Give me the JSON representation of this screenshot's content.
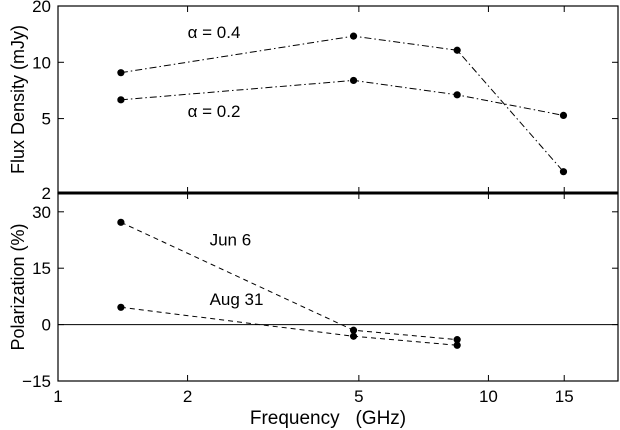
{
  "chart_data": [
    {
      "type": "line",
      "scale": {
        "x": "log",
        "y": "log"
      },
      "xlim": [
        1,
        20
      ],
      "ylim": [
        2,
        20
      ],
      "ylabel": "Flux Density (mJy)",
      "yticks": [
        2,
        5,
        10,
        20
      ],
      "ytick_labels": [
        "2",
        "5",
        "10",
        "20"
      ],
      "series": [
        {
          "name": "α = 0.4",
          "line_style": "dash-dot",
          "x": [
            1.4,
            4.86,
            8.46,
            14.94
          ],
          "y": [
            8.8,
            13.8,
            11.6,
            2.6
          ]
        },
        {
          "name": "α = 0.2",
          "line_style": "dash-dot",
          "x": [
            1.4,
            4.86,
            8.46,
            14.94
          ],
          "y": [
            6.3,
            8.0,
            6.7,
            5.2
          ]
        }
      ],
      "annotations": [
        {
          "text": "α = 0.4",
          "x": 2.0,
          "y": 13.5
        },
        {
          "text": "α = 0.2",
          "x": 2.0,
          "y": 5.1
        }
      ]
    },
    {
      "type": "line",
      "scale": {
        "x": "log",
        "y": "linear"
      },
      "xlim": [
        1,
        20
      ],
      "ylim": [
        -15,
        35
      ],
      "xlabel": "Frequency   (GHz)",
      "ylabel": "Polarization (%)",
      "xticks": [
        1,
        2,
        5,
        10,
        15
      ],
      "xtick_labels": [
        "1",
        "2",
        "5",
        "10",
        "15"
      ],
      "yticks": [
        -15,
        0,
        15,
        30
      ],
      "ytick_labels": [
        "−15",
        "0",
        "15",
        "30"
      ],
      "reference_line": 0,
      "series": [
        {
          "name": "Jun 6",
          "line_style": "dashed",
          "x": [
            1.4,
            4.86,
            8.46
          ],
          "y": [
            27.2,
            -1.5,
            -4.0
          ]
        },
        {
          "name": "Aug 31",
          "line_style": "dashed",
          "x": [
            1.4,
            4.86,
            8.46
          ],
          "y": [
            4.6,
            -3.1,
            -5.5
          ]
        }
      ],
      "annotations": [
        {
          "text": "Jun 6",
          "x": 2.25,
          "y": 21.0
        },
        {
          "text": "Aug 31",
          "x": 2.25,
          "y": 5.2
        }
      ]
    }
  ]
}
